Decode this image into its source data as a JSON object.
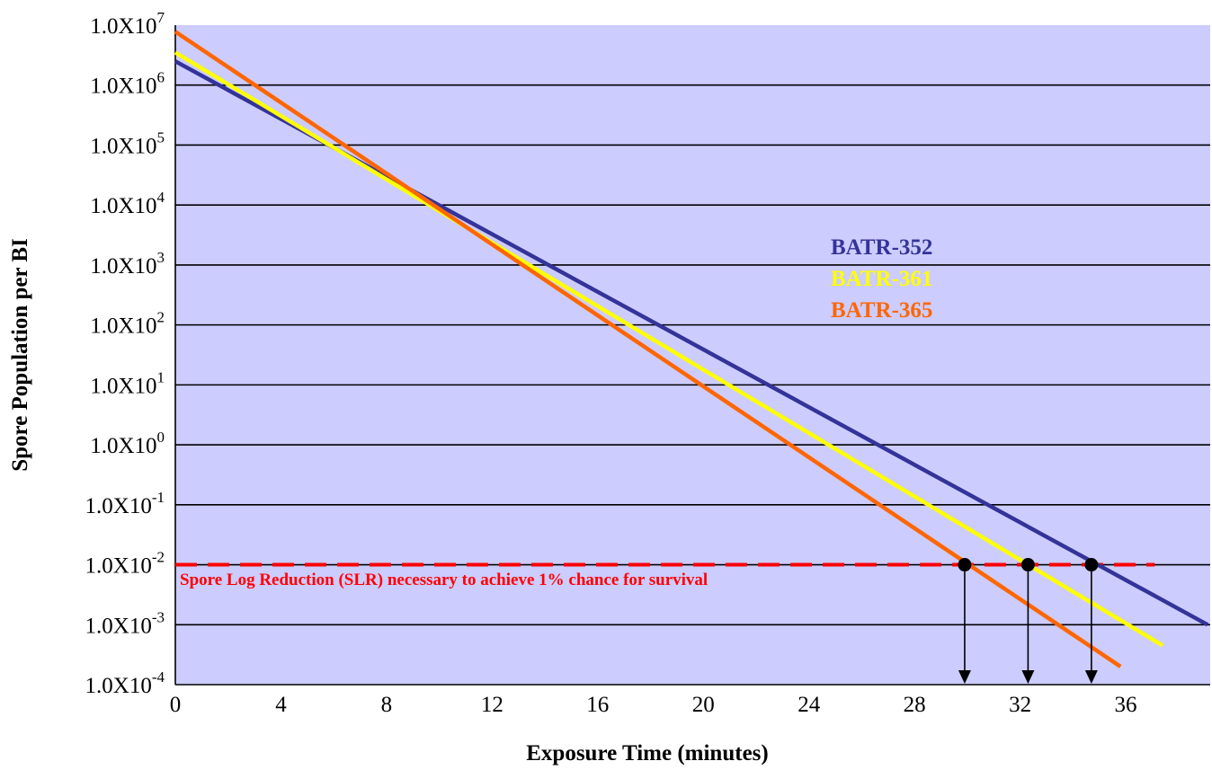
{
  "chart_data": {
    "type": "line",
    "title": "",
    "xlabel": "Exposure Time (minutes)",
    "ylabel": "Spore Population per BI",
    "y_scale": "log10",
    "xlim": [
      0,
      39.2
    ],
    "ylim_exponent": [
      -4,
      7
    ],
    "x_ticks": [
      "0",
      "4",
      "8",
      "12",
      "16",
      "20",
      "24",
      "28",
      "32",
      "36"
    ],
    "y_ticks": [
      {
        "mantissa": "1.0X10",
        "exponent": "7"
      },
      {
        "mantissa": "1.0X10",
        "exponent": "6"
      },
      {
        "mantissa": "1.0X10",
        "exponent": "5"
      },
      {
        "mantissa": "1.0X10",
        "exponent": "4"
      },
      {
        "mantissa": "1.0X10",
        "exponent": "3"
      },
      {
        "mantissa": "1.0X10",
        "exponent": "2"
      },
      {
        "mantissa": "1.0X10",
        "exponent": "1"
      },
      {
        "mantissa": "1.0X10",
        "exponent": "0"
      },
      {
        "mantissa": "1.0X10",
        "exponent": "-1"
      },
      {
        "mantissa": "1.0X10",
        "exponent": "-2"
      },
      {
        "mantissa": "1.0X10",
        "exponent": "-3"
      },
      {
        "mantissa": "1.0X10",
        "exponent": "-4"
      }
    ],
    "grid": true,
    "legend_position": "right-center",
    "series": [
      {
        "name": "BATR-352",
        "color": "#333399",
        "x": [
          0,
          39.1
        ],
        "y": [
          2500000,
          0.001
        ]
      },
      {
        "name": "BATR-361",
        "color": "#ffff00",
        "x": [
          0,
          37.4
        ],
        "y": [
          3500000,
          0.00045
        ]
      },
      {
        "name": "BATR-365",
        "color": "#ff6600",
        "x": [
          0,
          35.8
        ],
        "y": [
          7800000,
          0.0002
        ]
      }
    ],
    "reference_line": {
      "y": 0.01,
      "x_range": [
        0,
        37.1
      ],
      "color": "#ff0000",
      "style": "dashed",
      "label": "Spore Log Reduction (SLR) necessary to achieve 1% chance for survival"
    },
    "markers": [
      {
        "series": "BATR-365",
        "x": 29.9,
        "y": 0.01
      },
      {
        "series": "BATR-361",
        "x": 32.3,
        "y": 0.01
      },
      {
        "series": "BATR-352",
        "x": 34.7,
        "y": 0.01
      }
    ],
    "plot_background": "#ccccff"
  }
}
